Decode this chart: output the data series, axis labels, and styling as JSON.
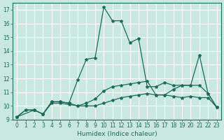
{
  "xlabel": "Humidex (Indice chaleur)",
  "ylabel": "",
  "background_color": "#c8e8e0",
  "grid_color": "#ffffff",
  "line_color": "#1a6b5a",
  "xlim": [
    -0.5,
    23.5
  ],
  "ylim": [
    9,
    17.5
  ],
  "yticks": [
    9,
    10,
    11,
    12,
    13,
    14,
    15,
    16,
    17
  ],
  "xticks": [
    0,
    1,
    2,
    3,
    4,
    5,
    6,
    7,
    8,
    9,
    10,
    11,
    12,
    13,
    14,
    15,
    16,
    17,
    18,
    19,
    20,
    21,
    22,
    23
  ],
  "line1_x": [
    0,
    1,
    2,
    3,
    4,
    5,
    6,
    7,
    8,
    9,
    10,
    11,
    12,
    13,
    14,
    15,
    16,
    17,
    18,
    19,
    20,
    21,
    22,
    23
  ],
  "line1_y": [
    9.2,
    9.7,
    9.7,
    9.4,
    10.2,
    10.2,
    10.1,
    10.0,
    10.0,
    10.0,
    10.2,
    10.4,
    10.6,
    10.7,
    10.8,
    10.9,
    10.8,
    10.8,
    10.7,
    10.6,
    10.7,
    10.6,
    10.6,
    9.9
  ],
  "line2_x": [
    0,
    1,
    2,
    3,
    4,
    5,
    6,
    7,
    8,
    9,
    10,
    11,
    12,
    13,
    14,
    15,
    16,
    17,
    18,
    19,
    20,
    21,
    22,
    23
  ],
  "line2_y": [
    9.2,
    9.7,
    9.7,
    9.4,
    10.3,
    10.3,
    10.2,
    10.0,
    10.2,
    10.5,
    11.1,
    11.4,
    11.5,
    11.6,
    11.7,
    11.8,
    10.8,
    10.8,
    11.2,
    11.5,
    11.5,
    11.5,
    10.9,
    9.9
  ],
  "line3_x": [
    0,
    2,
    3,
    4,
    5,
    6,
    7,
    8,
    9,
    10,
    11,
    12,
    13,
    14,
    15,
    16,
    17,
    18,
    19,
    20,
    21,
    22,
    23
  ],
  "line3_y": [
    9.2,
    9.7,
    9.4,
    10.3,
    10.3,
    10.2,
    11.9,
    13.4,
    13.5,
    17.2,
    16.2,
    16.2,
    14.6,
    14.9,
    11.4,
    11.4,
    11.7,
    11.5,
    11.5,
    11.5,
    13.7,
    10.9,
    9.9
  ]
}
